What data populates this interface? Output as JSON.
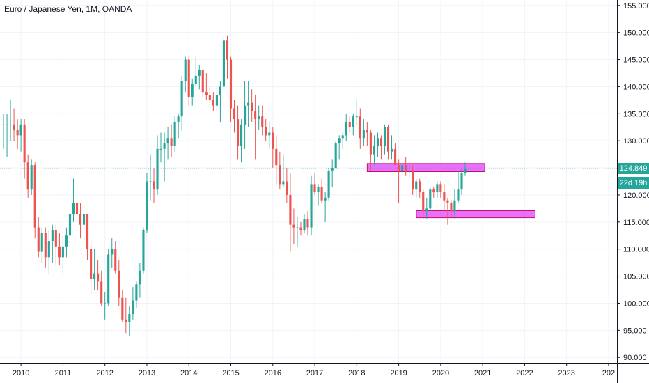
{
  "header": {
    "title": "Euro / Japanese Yen, 1M, OANDA"
  },
  "badges": {
    "last_price": "124.849",
    "countdown": "22d 19h"
  },
  "colors": {
    "up": "#26a69a",
    "down": "#ef5350",
    "zone_fill": "#e040fb",
    "zone_border": "#c51162",
    "last_line": "#26a69a"
  },
  "chart_data": {
    "type": "candlestick",
    "title": "Euro / Japanese Yen, 1M, OANDA",
    "x_ticks": [
      "2010",
      "2011",
      "2012",
      "2013",
      "2014",
      "2015",
      "2016",
      "2017",
      "2018",
      "2019",
      "2020",
      "2021",
      "2022",
      "2023",
      "202"
    ],
    "y_ticks": [
      "155.000",
      "150.000",
      "145.000",
      "140.000",
      "135.000",
      "130.000",
      "125.000",
      "120.000",
      "115.000",
      "110.000",
      "105.000",
      "100.000",
      "95.000",
      "90.000"
    ],
    "ylim": [
      89,
      156
    ],
    "xlim": [
      2009.5,
      2024.2
    ],
    "last_price": 124.849,
    "zones": [
      {
        "x_start": 2018.25,
        "x_end": 2021.05,
        "y_low": 124.3,
        "y_high": 125.8
      },
      {
        "x_start": 2019.42,
        "x_end": 2022.25,
        "y_low": 115.8,
        "y_high": 117.1
      }
    ],
    "candles": [
      {
        "x": 2009.583,
        "o": 133.0,
        "h": 135.0,
        "l": 128.5,
        "c": 133.0
      },
      {
        "x": 2009.667,
        "o": 133.0,
        "h": 135.0,
        "l": 127.0,
        "c": 133.0
      },
      {
        "x": 2009.75,
        "o": 133.0,
        "h": 137.5,
        "l": 130.0,
        "c": 133.0
      },
      {
        "x": 2009.833,
        "o": 133.0,
        "h": 136.0,
        "l": 130.0,
        "c": 132.0
      },
      {
        "x": 2009.917,
        "o": 132.0,
        "h": 134.0,
        "l": 128.5,
        "c": 131.0
      },
      {
        "x": 2010.0,
        "o": 131.0,
        "h": 134.0,
        "l": 128.0,
        "c": 133.0
      },
      {
        "x": 2010.083,
        "o": 133.0,
        "h": 134.0,
        "l": 123.0,
        "c": 126.0
      },
      {
        "x": 2010.167,
        "o": 126.0,
        "h": 127.5,
        "l": 119.5,
        "c": 121.0
      },
      {
        "x": 2010.25,
        "o": 121.0,
        "h": 126.5,
        "l": 120.0,
        "c": 125.5
      },
      {
        "x": 2010.333,
        "o": 125.5,
        "h": 126.0,
        "l": 112.0,
        "c": 114.0
      },
      {
        "x": 2010.417,
        "o": 114.0,
        "h": 116.0,
        "l": 108.5,
        "c": 109.5
      },
      {
        "x": 2010.5,
        "o": 109.5,
        "h": 114.0,
        "l": 107.5,
        "c": 113.0
      },
      {
        "x": 2010.583,
        "o": 113.0,
        "h": 114.0,
        "l": 106.5,
        "c": 108.5
      },
      {
        "x": 2010.667,
        "o": 108.5,
        "h": 113.5,
        "l": 105.5,
        "c": 111.5
      },
      {
        "x": 2010.75,
        "o": 111.5,
        "h": 114.5,
        "l": 107.5,
        "c": 113.5
      },
      {
        "x": 2010.833,
        "o": 113.5,
        "h": 114.5,
        "l": 107.0,
        "c": 110.5
      },
      {
        "x": 2010.917,
        "o": 110.5,
        "h": 113.0,
        "l": 107.0,
        "c": 108.5
      },
      {
        "x": 2011.0,
        "o": 108.5,
        "h": 112.5,
        "l": 105.5,
        "c": 110.5
      },
      {
        "x": 2011.083,
        "o": 110.5,
        "h": 114.0,
        "l": 108.5,
        "c": 112.5
      },
      {
        "x": 2011.167,
        "o": 112.5,
        "h": 117.0,
        "l": 108.5,
        "c": 116.5
      },
      {
        "x": 2011.25,
        "o": 116.5,
        "h": 123.0,
        "l": 115.0,
        "c": 118.5
      },
      {
        "x": 2011.333,
        "o": 118.5,
        "h": 121.0,
        "l": 115.5,
        "c": 116.5
      },
      {
        "x": 2011.417,
        "o": 116.5,
        "h": 118.5,
        "l": 112.0,
        "c": 114.5
      },
      {
        "x": 2011.5,
        "o": 114.5,
        "h": 118.0,
        "l": 111.0,
        "c": 116.5
      },
      {
        "x": 2011.583,
        "o": 116.5,
        "h": 116.5,
        "l": 108.0,
        "c": 110.0
      },
      {
        "x": 2011.667,
        "o": 110.0,
        "h": 111.5,
        "l": 101.5,
        "c": 104.5
      },
      {
        "x": 2011.75,
        "o": 104.5,
        "h": 110.0,
        "l": 102.5,
        "c": 105.5
      },
      {
        "x": 2011.833,
        "o": 105.5,
        "h": 108.0,
        "l": 102.5,
        "c": 104.0
      },
      {
        "x": 2011.917,
        "o": 104.0,
        "h": 106.0,
        "l": 99.5,
        "c": 100.0
      },
      {
        "x": 2012.0,
        "o": 100.0,
        "h": 102.0,
        "l": 97.0,
        "c": 100.0
      },
      {
        "x": 2012.083,
        "o": 100.0,
        "h": 110.0,
        "l": 99.5,
        "c": 109.0
      },
      {
        "x": 2012.167,
        "o": 109.0,
        "h": 112.0,
        "l": 106.5,
        "c": 110.0
      },
      {
        "x": 2012.25,
        "o": 110.0,
        "h": 111.5,
        "l": 105.5,
        "c": 106.0
      },
      {
        "x": 2012.333,
        "o": 106.0,
        "h": 108.0,
        "l": 99.5,
        "c": 101.0
      },
      {
        "x": 2012.417,
        "o": 101.0,
        "h": 102.5,
        "l": 96.5,
        "c": 97.0
      },
      {
        "x": 2012.5,
        "o": 97.0,
        "h": 101.0,
        "l": 94.5,
        "c": 96.5
      },
      {
        "x": 2012.583,
        "o": 96.5,
        "h": 99.5,
        "l": 94.0,
        "c": 98.0
      },
      {
        "x": 2012.667,
        "o": 98.0,
        "h": 103.0,
        "l": 97.0,
        "c": 100.5
      },
      {
        "x": 2012.75,
        "o": 100.5,
        "h": 104.0,
        "l": 99.0,
        "c": 103.5
      },
      {
        "x": 2012.833,
        "o": 103.5,
        "h": 107.5,
        "l": 101.0,
        "c": 106.0
      },
      {
        "x": 2012.917,
        "o": 106.0,
        "h": 114.0,
        "l": 105.5,
        "c": 113.5
      },
      {
        "x": 2013.0,
        "o": 113.5,
        "h": 124.0,
        "l": 113.0,
        "c": 122.5
      },
      {
        "x": 2013.083,
        "o": 122.5,
        "h": 127.5,
        "l": 119.0,
        "c": 122.5
      },
      {
        "x": 2013.167,
        "o": 122.5,
        "h": 125.0,
        "l": 118.5,
        "c": 121.0
      },
      {
        "x": 2013.25,
        "o": 121.0,
        "h": 131.0,
        "l": 120.0,
        "c": 128.5
      },
      {
        "x": 2013.333,
        "o": 128.5,
        "h": 131.5,
        "l": 126.0,
        "c": 128.5
      },
      {
        "x": 2013.417,
        "o": 128.5,
        "h": 131.5,
        "l": 122.5,
        "c": 129.5
      },
      {
        "x": 2013.5,
        "o": 129.5,
        "h": 132.5,
        "l": 126.5,
        "c": 130.5
      },
      {
        "x": 2013.583,
        "o": 130.5,
        "h": 133.0,
        "l": 127.0,
        "c": 129.0
      },
      {
        "x": 2013.667,
        "o": 129.0,
        "h": 134.5,
        "l": 128.0,
        "c": 133.5
      },
      {
        "x": 2013.75,
        "o": 133.5,
        "h": 135.0,
        "l": 130.5,
        "c": 134.5
      },
      {
        "x": 2013.833,
        "o": 134.5,
        "h": 142.0,
        "l": 132.0,
        "c": 141.0
      },
      {
        "x": 2013.917,
        "o": 141.0,
        "h": 145.5,
        "l": 139.0,
        "c": 145.0
      },
      {
        "x": 2014.0,
        "o": 145.0,
        "h": 145.5,
        "l": 136.5,
        "c": 138.0
      },
      {
        "x": 2014.083,
        "o": 138.0,
        "h": 141.5,
        "l": 136.5,
        "c": 140.5
      },
      {
        "x": 2014.167,
        "o": 140.5,
        "h": 145.5,
        "l": 140.0,
        "c": 142.0
      },
      {
        "x": 2014.25,
        "o": 142.0,
        "h": 144.0,
        "l": 139.5,
        "c": 143.0
      },
      {
        "x": 2014.333,
        "o": 143.0,
        "h": 143.0,
        "l": 138.0,
        "c": 139.0
      },
      {
        "x": 2014.417,
        "o": 139.0,
        "h": 142.5,
        "l": 137.5,
        "c": 138.5
      },
      {
        "x": 2014.5,
        "o": 138.5,
        "h": 140.0,
        "l": 137.0,
        "c": 137.5
      },
      {
        "x": 2014.583,
        "o": 137.5,
        "h": 139.0,
        "l": 135.5,
        "c": 136.5
      },
      {
        "x": 2014.667,
        "o": 136.5,
        "h": 140.0,
        "l": 135.5,
        "c": 138.5
      },
      {
        "x": 2014.75,
        "o": 138.5,
        "h": 141.0,
        "l": 133.5,
        "c": 140.0
      },
      {
        "x": 2014.833,
        "o": 140.0,
        "h": 149.5,
        "l": 139.5,
        "c": 148.5
      },
      {
        "x": 2014.917,
        "o": 148.5,
        "h": 149.5,
        "l": 141.5,
        "c": 145.0
      },
      {
        "x": 2015.0,
        "o": 145.0,
        "h": 145.5,
        "l": 133.5,
        "c": 136.0
      },
      {
        "x": 2015.083,
        "o": 136.0,
        "h": 137.5,
        "l": 131.5,
        "c": 134.0
      },
      {
        "x": 2015.167,
        "o": 134.0,
        "h": 136.5,
        "l": 126.5,
        "c": 129.0
      },
      {
        "x": 2015.25,
        "o": 129.0,
        "h": 134.0,
        "l": 126.0,
        "c": 133.0
      },
      {
        "x": 2015.333,
        "o": 133.0,
        "h": 141.0,
        "l": 128.5,
        "c": 136.5
      },
      {
        "x": 2015.417,
        "o": 136.5,
        "h": 141.0,
        "l": 132.5,
        "c": 137.0
      },
      {
        "x": 2015.5,
        "o": 137.0,
        "h": 139.5,
        "l": 133.5,
        "c": 135.5
      },
      {
        "x": 2015.583,
        "o": 135.5,
        "h": 138.5,
        "l": 126.5,
        "c": 134.0
      },
      {
        "x": 2015.667,
        "o": 134.0,
        "h": 136.5,
        "l": 132.0,
        "c": 134.5
      },
      {
        "x": 2015.75,
        "o": 134.5,
        "h": 136.5,
        "l": 131.0,
        "c": 132.5
      },
      {
        "x": 2015.833,
        "o": 132.5,
        "h": 134.0,
        "l": 130.0,
        "c": 131.0
      },
      {
        "x": 2015.917,
        "o": 131.0,
        "h": 133.5,
        "l": 128.5,
        "c": 131.5
      },
      {
        "x": 2016.0,
        "o": 131.5,
        "h": 132.5,
        "l": 125.0,
        "c": 128.5
      },
      {
        "x": 2016.083,
        "o": 128.5,
        "h": 131.0,
        "l": 122.0,
        "c": 125.5
      },
      {
        "x": 2016.167,
        "o": 125.5,
        "h": 128.0,
        "l": 121.0,
        "c": 122.0
      },
      {
        "x": 2016.25,
        "o": 122.0,
        "h": 127.5,
        "l": 121.5,
        "c": 122.5
      },
      {
        "x": 2016.333,
        "o": 122.5,
        "h": 125.0,
        "l": 118.5,
        "c": 120.0
      },
      {
        "x": 2016.417,
        "o": 120.0,
        "h": 124.0,
        "l": 109.5,
        "c": 114.5
      },
      {
        "x": 2016.5,
        "o": 114.5,
        "h": 117.5,
        "l": 111.0,
        "c": 114.0
      },
      {
        "x": 2016.583,
        "o": 114.0,
        "h": 116.0,
        "l": 110.5,
        "c": 114.0
      },
      {
        "x": 2016.667,
        "o": 114.0,
        "h": 115.0,
        "l": 112.5,
        "c": 113.5
      },
      {
        "x": 2016.75,
        "o": 113.5,
        "h": 116.5,
        "l": 113.0,
        "c": 115.5
      },
      {
        "x": 2016.833,
        "o": 115.5,
        "h": 117.0,
        "l": 112.5,
        "c": 114.0
      },
      {
        "x": 2016.917,
        "o": 114.0,
        "h": 123.5,
        "l": 112.5,
        "c": 122.0
      },
      {
        "x": 2017.0,
        "o": 122.0,
        "h": 124.0,
        "l": 120.0,
        "c": 120.5
      },
      {
        "x": 2017.083,
        "o": 120.5,
        "h": 122.0,
        "l": 118.0,
        "c": 121.5
      },
      {
        "x": 2017.167,
        "o": 121.5,
        "h": 123.0,
        "l": 118.5,
        "c": 119.0
      },
      {
        "x": 2017.25,
        "o": 119.0,
        "h": 120.5,
        "l": 115.0,
        "c": 119.5
      },
      {
        "x": 2017.333,
        "o": 119.5,
        "h": 125.0,
        "l": 119.0,
        "c": 124.5
      },
      {
        "x": 2017.417,
        "o": 124.5,
        "h": 126.5,
        "l": 121.5,
        "c": 125.0
      },
      {
        "x": 2017.5,
        "o": 125.0,
        "h": 130.0,
        "l": 125.0,
        "c": 129.5
      },
      {
        "x": 2017.583,
        "o": 129.5,
        "h": 131.0,
        "l": 126.5,
        "c": 130.5
      },
      {
        "x": 2017.667,
        "o": 130.5,
        "h": 131.5,
        "l": 128.5,
        "c": 131.0
      },
      {
        "x": 2017.75,
        "o": 131.0,
        "h": 135.0,
        "l": 130.0,
        "c": 133.5
      },
      {
        "x": 2017.833,
        "o": 133.5,
        "h": 134.5,
        "l": 131.5,
        "c": 132.5
      },
      {
        "x": 2017.917,
        "o": 132.5,
        "h": 135.0,
        "l": 131.0,
        "c": 134.5
      },
      {
        "x": 2018.0,
        "o": 134.5,
        "h": 137.5,
        "l": 133.0,
        "c": 134.5
      },
      {
        "x": 2018.083,
        "o": 134.5,
        "h": 136.0,
        "l": 128.5,
        "c": 130.5
      },
      {
        "x": 2018.167,
        "o": 130.5,
        "h": 134.0,
        "l": 129.0,
        "c": 132.0
      },
      {
        "x": 2018.25,
        "o": 132.0,
        "h": 133.5,
        "l": 129.0,
        "c": 131.5
      },
      {
        "x": 2018.333,
        "o": 131.5,
        "h": 132.0,
        "l": 124.5,
        "c": 127.5
      },
      {
        "x": 2018.417,
        "o": 127.5,
        "h": 131.0,
        "l": 125.5,
        "c": 129.0
      },
      {
        "x": 2018.5,
        "o": 129.0,
        "h": 131.5,
        "l": 127.0,
        "c": 130.5
      },
      {
        "x": 2018.583,
        "o": 130.5,
        "h": 131.0,
        "l": 126.5,
        "c": 129.0
      },
      {
        "x": 2018.667,
        "o": 129.0,
        "h": 133.0,
        "l": 127.5,
        "c": 132.5
      },
      {
        "x": 2018.75,
        "o": 132.5,
        "h": 133.0,
        "l": 126.5,
        "c": 128.0
      },
      {
        "x": 2018.833,
        "o": 128.0,
        "h": 131.0,
        "l": 126.5,
        "c": 128.5
      },
      {
        "x": 2018.917,
        "o": 128.5,
        "h": 129.5,
        "l": 125.5,
        "c": 125.5
      },
      {
        "x": 2019.0,
        "o": 125.5,
        "h": 126.5,
        "l": 118.5,
        "c": 124.5
      },
      {
        "x": 2019.083,
        "o": 124.5,
        "h": 126.0,
        "l": 124.0,
        "c": 125.5
      },
      {
        "x": 2019.167,
        "o": 125.5,
        "h": 127.0,
        "l": 123.5,
        "c": 124.5
      },
      {
        "x": 2019.25,
        "o": 124.5,
        "h": 125.5,
        "l": 123.0,
        "c": 124.5
      },
      {
        "x": 2019.333,
        "o": 124.5,
        "h": 125.5,
        "l": 120.0,
        "c": 121.0
      },
      {
        "x": 2019.417,
        "o": 121.0,
        "h": 123.0,
        "l": 119.5,
        "c": 122.5
      },
      {
        "x": 2019.5,
        "o": 122.5,
        "h": 123.0,
        "l": 119.5,
        "c": 120.5
      },
      {
        "x": 2019.583,
        "o": 120.5,
        "h": 121.0,
        "l": 115.5,
        "c": 117.0
      },
      {
        "x": 2019.667,
        "o": 117.0,
        "h": 119.5,
        "l": 115.5,
        "c": 117.5
      },
      {
        "x": 2019.75,
        "o": 117.5,
        "h": 121.5,
        "l": 117.0,
        "c": 121.0
      },
      {
        "x": 2019.833,
        "o": 121.0,
        "h": 121.5,
        "l": 119.5,
        "c": 120.5
      },
      {
        "x": 2019.917,
        "o": 120.5,
        "h": 122.5,
        "l": 119.5,
        "c": 122.0
      },
      {
        "x": 2020.0,
        "o": 122.0,
        "h": 122.5,
        "l": 119.5,
        "c": 120.5
      },
      {
        "x": 2020.083,
        "o": 120.5,
        "h": 122.0,
        "l": 117.0,
        "c": 119.0
      },
      {
        "x": 2020.167,
        "o": 119.0,
        "h": 119.5,
        "l": 114.5,
        "c": 118.5
      },
      {
        "x": 2020.25,
        "o": 118.5,
        "h": 119.0,
        "l": 116.0,
        "c": 117.0
      },
      {
        "x": 2020.333,
        "o": 117.0,
        "h": 121.0,
        "l": 115.5,
        "c": 119.0
      },
      {
        "x": 2020.417,
        "o": 119.0,
        "h": 124.5,
        "l": 118.5,
        "c": 121.0
      },
      {
        "x": 2020.5,
        "o": 121.0,
        "h": 125.0,
        "l": 120.0,
        "c": 124.0
      },
      {
        "x": 2020.583,
        "o": 124.0,
        "h": 126.0,
        "l": 123.5,
        "c": 124.8
      }
    ]
  }
}
